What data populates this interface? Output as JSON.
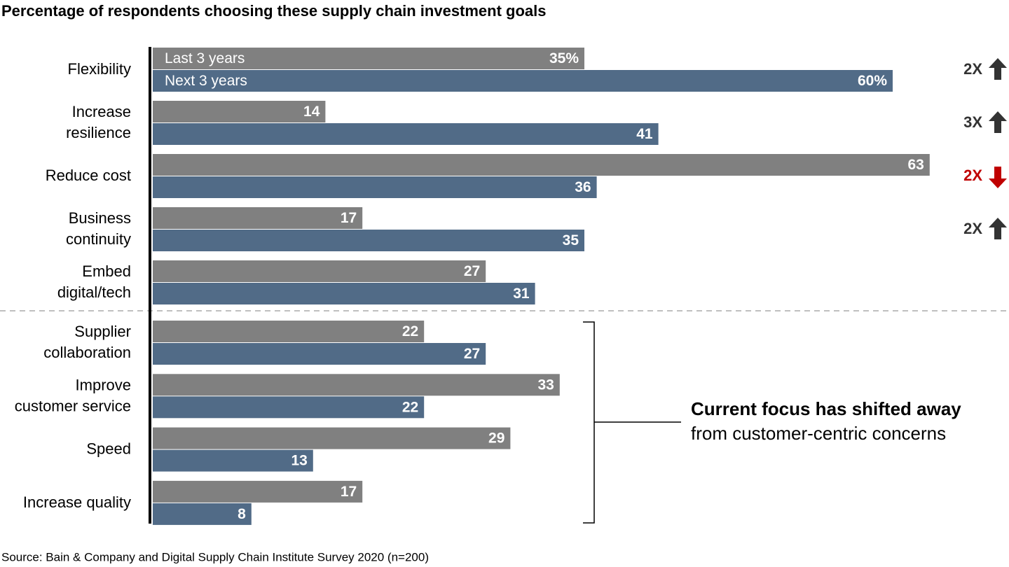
{
  "chart_data": {
    "type": "grouped-hbar",
    "title": "Percentage of respondents choosing these supply chain investment goals",
    "categories": [
      "Flexibility",
      "Increase\nresilience",
      "Reduce cost",
      "Business\ncontinuity",
      "Embed\ndigital/tech",
      "Supplier\ncollaboration",
      "Improve\ncustomer service",
      "Speed",
      "Increase quality"
    ],
    "series": [
      {
        "name": "Last 3 years",
        "color": "#808080",
        "values": [
          35,
          14,
          63,
          17,
          27,
          22,
          33,
          29,
          17
        ],
        "value_labels": [
          "35%",
          "14",
          "63",
          "17",
          "27",
          "22",
          "33",
          "29",
          "17"
        ]
      },
      {
        "name": "Next 3 years",
        "color": "#516b87",
        "values": [
          60,
          41,
          36,
          35,
          31,
          27,
          22,
          13,
          8
        ],
        "value_labels": [
          "60%",
          "41",
          "36",
          "35",
          "31",
          "27",
          "22",
          "13",
          "8"
        ]
      }
    ],
    "xlim": [
      0,
      65
    ],
    "change_markers": [
      {
        "text": "2X",
        "direction": "up",
        "color": "#333333"
      },
      {
        "text": "3X",
        "direction": "up",
        "color": "#333333"
      },
      {
        "text": "2X",
        "direction": "down",
        "color": "#c00000"
      },
      {
        "text": "2X",
        "direction": "up",
        "color": "#333333"
      }
    ],
    "note": {
      "bold": "Current focus has shifted away",
      "text": "from customer-centric concerns"
    },
    "source": "Source: Bain & Company and Digital Supply Chain Institute Survey 2020 (n=200)"
  }
}
